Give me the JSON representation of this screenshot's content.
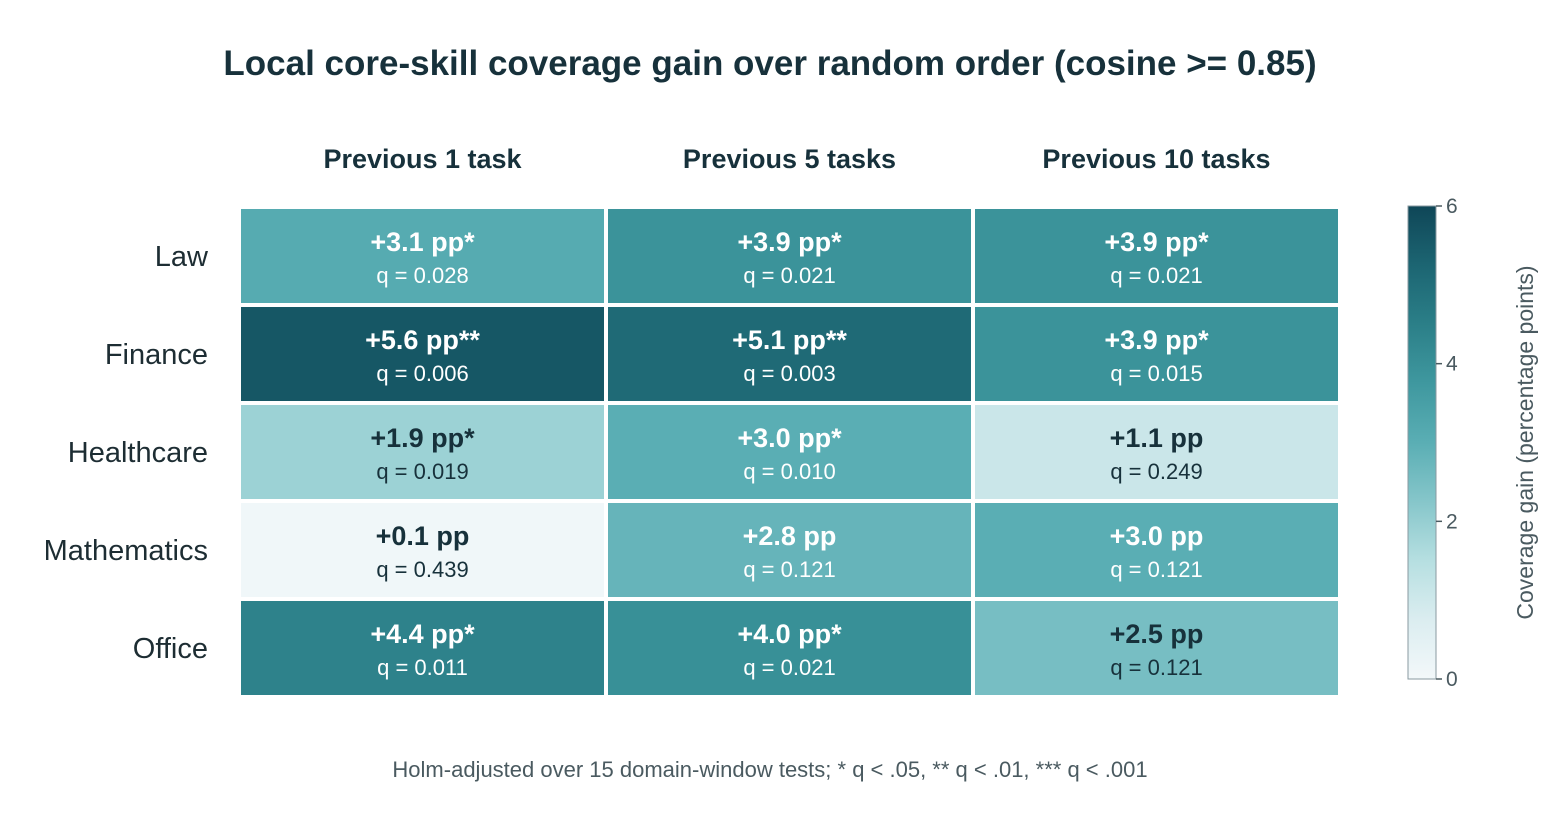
{
  "chart_data": {
    "type": "heatmap",
    "title": "Local core-skill coverage gain over random order (cosine >= 0.85)",
    "columns": [
      "Previous 1 task",
      "Previous 5 tasks",
      "Previous 10 tasks"
    ],
    "rows": [
      "Law",
      "Finance",
      "Healthcare",
      "Mathematics",
      "Office"
    ],
    "values": [
      [
        3.1,
        3.9,
        3.9
      ],
      [
        5.6,
        5.1,
        3.9
      ],
      [
        1.9,
        3.0,
        1.1
      ],
      [
        0.1,
        2.8,
        3.0
      ],
      [
        4.4,
        4.0,
        2.5
      ]
    ],
    "cell_labels": [
      [
        "+3.1 pp*",
        "+3.9 pp*",
        "+3.9 pp*"
      ],
      [
        "+5.6 pp**",
        "+5.1 pp**",
        "+3.9 pp*"
      ],
      [
        "+1.9 pp*",
        "+3.0 pp*",
        "+1.1 pp"
      ],
      [
        "+0.1 pp",
        "+2.8 pp",
        "+3.0 pp"
      ],
      [
        "+4.4 pp*",
        "+4.0 pp*",
        "+2.5 pp"
      ]
    ],
    "q_labels": [
      [
        "q = 0.028",
        "q = 0.021",
        "q = 0.021"
      ],
      [
        "q = 0.006",
        "q = 0.003",
        "q = 0.015"
      ],
      [
        "q = 0.019",
        "q = 0.010",
        "q = 0.249"
      ],
      [
        "q = 0.439",
        "q = 0.121",
        "q = 0.121"
      ],
      [
        "q = 0.011",
        "q = 0.021",
        "q = 0.121"
      ]
    ],
    "colorbar": {
      "label": "Coverage gain (percentage points)",
      "range": [
        0,
        6
      ],
      "ticks": [
        0,
        2,
        4,
        6
      ],
      "colors": [
        "#f3f8fa",
        "#dbedf0",
        "#b6dfe1",
        "#86c6ca",
        "#5aaeb4",
        "#3f989f",
        "#2b7f88",
        "#1c6572",
        "#0f4657"
      ]
    },
    "footnote": "Holm-adjusted over 15 domain-window tests;  * q < .05,  ** q < .01,  *** q < .001"
  }
}
